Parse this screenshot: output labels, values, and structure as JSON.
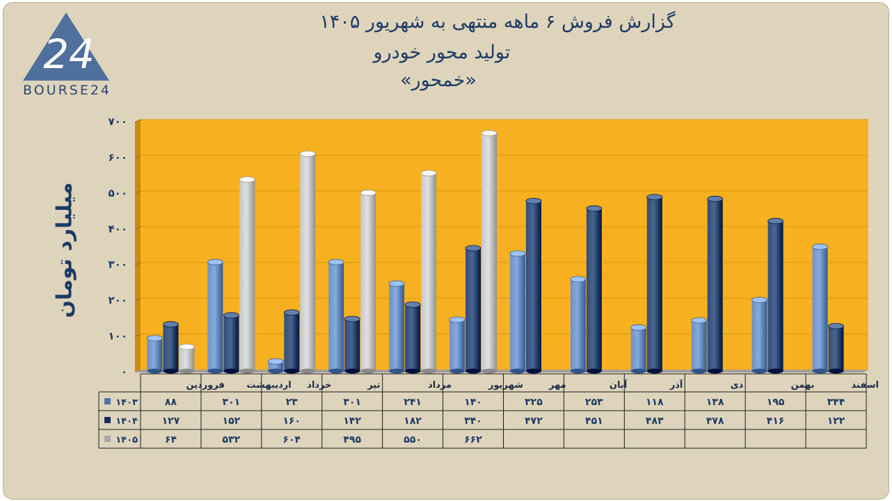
{
  "header": {
    "title_line1": "گزارش  فروش ۶ ماهه منتهی به شهریور ۱۴۰۵",
    "title_line2": "تولید محور خودرو",
    "title_line3": "«خمحور»"
  },
  "logo": {
    "text": "BOURSE24",
    "mark": "24"
  },
  "colors": {
    "s1403": "#4f73a6",
    "s1404": "#142e5a",
    "s1405": "#a9a9a9",
    "plot_bg": "#f7b01f",
    "frame_bg": "#ded4bc"
  },
  "chart_data": {
    "type": "bar",
    "ylabel": "میلیارد تومان",
    "ylim": [
      0,
      700
    ],
    "yticks": [
      "۰",
      "۱۰۰",
      "۲۰۰",
      "۳۰۰",
      "۴۰۰",
      "۵۰۰",
      "۶۰۰",
      "۷۰۰"
    ],
    "categories": [
      "فروردین",
      "اردیبهشت",
      "خرداد",
      "تیر",
      "مرداد",
      "شهریور",
      "مهر",
      "آبان",
      "آذر",
      "دی",
      "بهمن",
      "اسفند"
    ],
    "series": [
      {
        "name": "۱۴۰۳",
        "values": [
          88,
          301,
          23,
          301,
          241,
          140,
          325,
          253,
          118,
          138,
          195,
          344
        ],
        "labels": [
          "۸۸",
          "۳۰۱",
          "۲۳",
          "۳۰۱",
          "۲۴۱",
          "۱۴۰",
          "۳۲۵",
          "۲۵۳",
          "۱۱۸",
          "۱۳۸",
          "۱۹۵",
          "۳۴۴"
        ]
      },
      {
        "name": "۱۴۰۴",
        "values": [
          127,
          152,
          160,
          142,
          182,
          340,
          472,
          451,
          483,
          478,
          416,
          122
        ],
        "labels": [
          "۱۲۷",
          "۱۵۲",
          "۱۶۰",
          "۱۴۲",
          "۱۸۲",
          "۳۴۰",
          "۴۷۲",
          "۴۵۱",
          "۴۸۳",
          "۴۷۸",
          "۴۱۶",
          "۱۲۲"
        ]
      },
      {
        "name": "۱۴۰۵",
        "values": [
          64,
          532,
          604,
          495,
          550,
          662,
          null,
          null,
          null,
          null,
          null,
          null
        ],
        "labels": [
          "۶۴",
          "۵۳۲",
          "۶۰۴",
          "۴۹۵",
          "۵۵۰",
          "۶۶۲",
          "",
          "",
          "",
          "",
          "",
          ""
        ]
      }
    ],
    "grid": true,
    "legend": "data-table"
  }
}
